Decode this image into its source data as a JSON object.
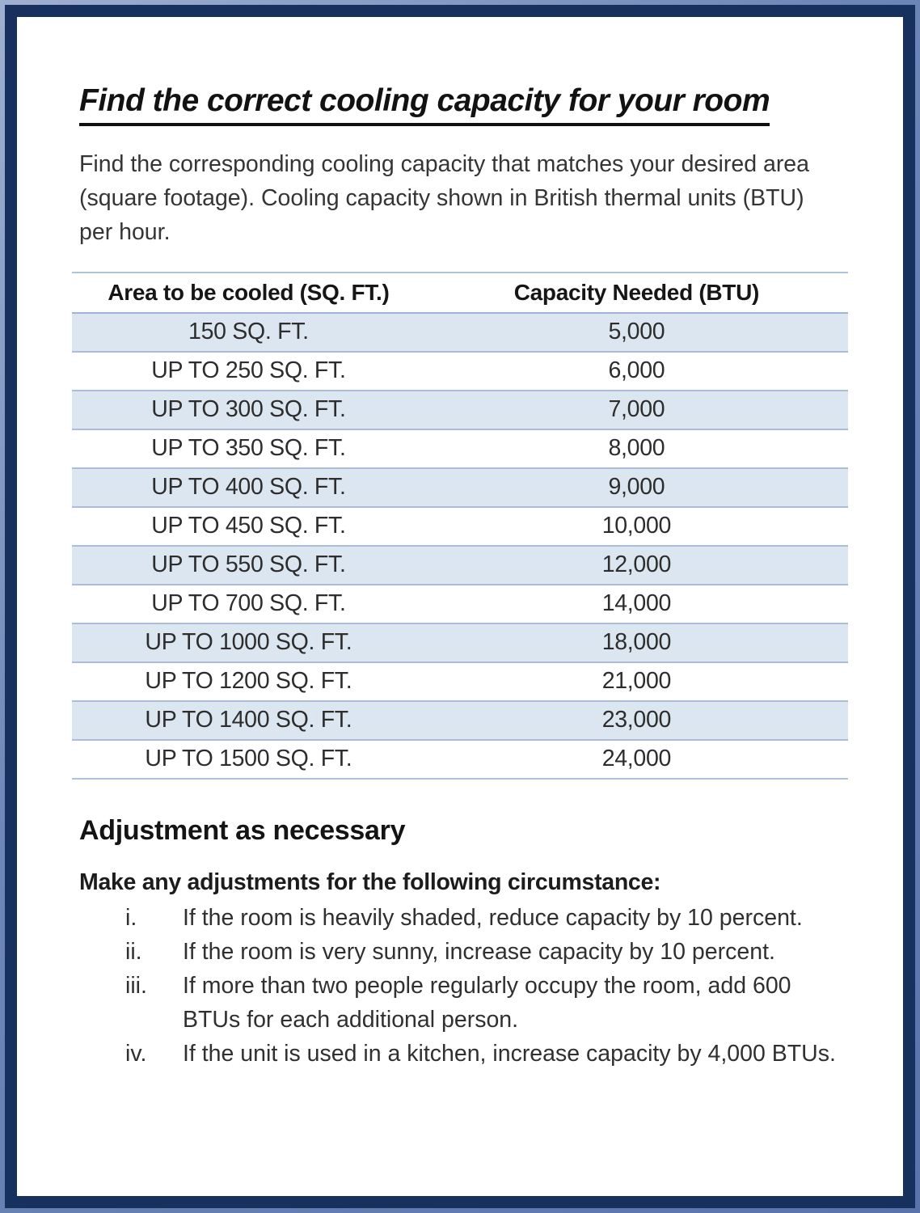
{
  "doc": {
    "title": "Find the correct cooling capacity for your room",
    "intro": "Find the corresponding cooling capacity that matches your desired area (square footage). Cooling capacity shown in British thermal units (BTU) per hour."
  },
  "table": {
    "columns": [
      "Area to be cooled (SQ. FT.)",
      "Capacity Needed (BTU)"
    ],
    "rows": [
      {
        "area": "150 SQ. FT.",
        "capacity": "5,000",
        "shaded": true
      },
      {
        "area": "UP TO 250 SQ. FT.",
        "capacity": "6,000",
        "shaded": false
      },
      {
        "area": "UP TO 300 SQ. FT.",
        "capacity": "7,000",
        "shaded": true
      },
      {
        "area": "UP TO 350 SQ. FT.",
        "capacity": "8,000",
        "shaded": false
      },
      {
        "area": "UP TO 400 SQ. FT.",
        "capacity": "9,000",
        "shaded": true
      },
      {
        "area": "UP TO 450 SQ. FT.",
        "capacity": "10,000",
        "shaded": false
      },
      {
        "area": "UP TO 550 SQ. FT.",
        "capacity": "12,000",
        "shaded": true
      },
      {
        "area": "UP TO 700 SQ. FT.",
        "capacity": "14,000",
        "shaded": false
      },
      {
        "area": "UP TO 1000 SQ. FT.",
        "capacity": "18,000",
        "shaded": true
      },
      {
        "area": "UP TO 1200 SQ. FT.",
        "capacity": "21,000",
        "shaded": false
      },
      {
        "area": "UP TO 1400 SQ. FT.",
        "capacity": "23,000",
        "shaded": true
      },
      {
        "area": "UP TO 1500 SQ. FT.",
        "capacity": "24,000",
        "shaded": false
      }
    ]
  },
  "adjustments": {
    "heading": "Adjustment as necessary",
    "lead": "Make any adjustments for the following circumstance:",
    "items": [
      {
        "marker": "i.",
        "text": "If the room is heavily shaded, reduce capacity by 10 percent."
      },
      {
        "marker": "ii.",
        "text": "If the room is very sunny, increase capacity by 10 percent."
      },
      {
        "marker": "iii.",
        "text": "If more than two people regularly occupy the room, add 600 BTUs for each additional person."
      },
      {
        "marker": "iv.",
        "text": "If the unit is used in a kitchen, increase capacity by 4,000 BTUs."
      }
    ]
  },
  "colors": {
    "border_dark_navy": "#17305e",
    "border_light_blue": "#6d86b8",
    "row_shade": "#dce6f1",
    "row_line": "#a9bedb",
    "body_text": "#303030"
  }
}
